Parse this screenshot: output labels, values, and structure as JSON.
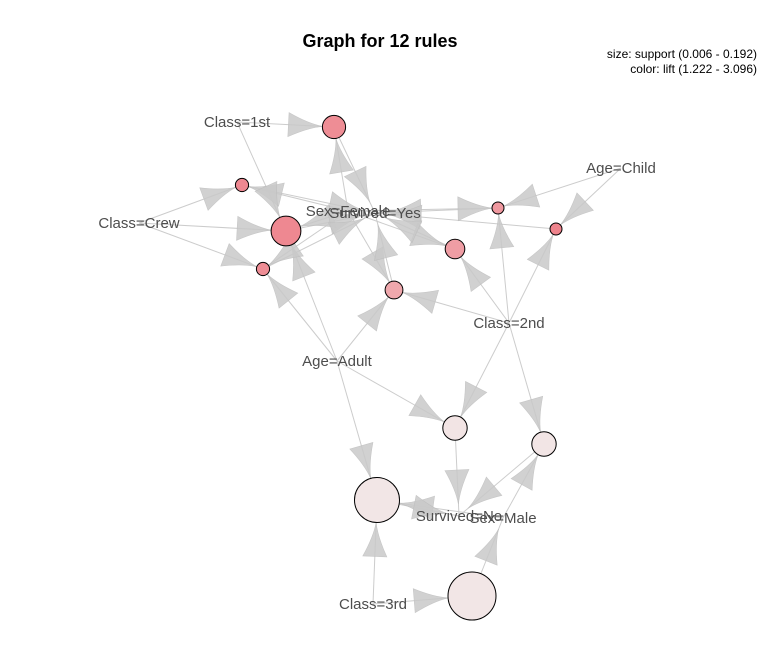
{
  "title": "Graph for 12 rules",
  "legend": {
    "size_line": "size: support (0.006 - 0.192)",
    "color_line": "color: lift (1.222 - 3.096)"
  },
  "colors": {
    "low_lift": "#f2e6e6",
    "high_lift": "#ee838c"
  },
  "items": [
    {
      "id": "class1",
      "label": "Class=1st"
    },
    {
      "id": "classcrew",
      "label": "Class=Crew"
    },
    {
      "id": "sexfemale",
      "label": "Sex=Female"
    },
    {
      "id": "survivedyes",
      "label": "Survived=Yes"
    },
    {
      "id": "agechild",
      "label": "Age=Child"
    },
    {
      "id": "class2",
      "label": "Class=2nd"
    },
    {
      "id": "ageadult",
      "label": "Age=Adult"
    },
    {
      "id": "survivedno",
      "label": "Survived=No"
    },
    {
      "id": "sexmale",
      "label": "Sex=Male"
    },
    {
      "id": "class3",
      "label": "Class=3rd"
    }
  ],
  "rules": [
    {
      "id": "r1",
      "support": 0.064,
      "lift": 2.9,
      "lhs": [
        "class1",
        "sexfemale"
      ],
      "rhs": "survivedyes"
    },
    {
      "id": "r2",
      "support": 0.012,
      "lift": 3.0,
      "lhs": [
        "classcrew",
        "sexfemale"
      ],
      "rhs": "survivedyes"
    },
    {
      "id": "r3",
      "support": 0.098,
      "lift": 3.0,
      "lhs": [
        "class1",
        "classcrew",
        "sexfemale",
        "ageadult"
      ],
      "rhs": "survivedyes"
    },
    {
      "id": "r4",
      "support": 0.012,
      "lift": 2.9,
      "lhs": [
        "classcrew",
        "sexfemale",
        "ageadult"
      ],
      "rhs": "survivedyes"
    },
    {
      "id": "r5",
      "support": 0.006,
      "lift": 2.7,
      "lhs": [
        "agechild",
        "sexfemale",
        "class2"
      ],
      "rhs": "survivedyes"
    },
    {
      "id": "r6",
      "support": 0.006,
      "lift": 3.096,
      "lhs": [
        "agechild",
        "class2"
      ],
      "rhs": "survivedyes"
    },
    {
      "id": "r7",
      "support": 0.045,
      "lift": 2.6,
      "lhs": [
        "sexfemale",
        "class2"
      ],
      "rhs": "survivedyes"
    },
    {
      "id": "r8",
      "support": 0.036,
      "lift": 2.4,
      "lhs": [
        "sexfemale",
        "class2",
        "ageadult"
      ],
      "rhs": "survivedyes"
    },
    {
      "id": "r9",
      "support": 0.07,
      "lift": 1.26,
      "lhs": [
        "class2",
        "ageadult"
      ],
      "rhs": "survivedno"
    },
    {
      "id": "r10",
      "support": 0.07,
      "lift": 1.25,
      "lhs": [
        "class2",
        "sexmale"
      ],
      "rhs": "survivedno"
    },
    {
      "id": "r11",
      "support": 0.176,
      "lift": 1.23,
      "lhs": [
        "ageadult",
        "class3",
        "sexmale"
      ],
      "rhs": "survivedno"
    },
    {
      "id": "r12",
      "support": 0.192,
      "lift": 1.222,
      "lhs": [
        "class3"
      ],
      "rhs": "sexmale"
    }
  ]
}
